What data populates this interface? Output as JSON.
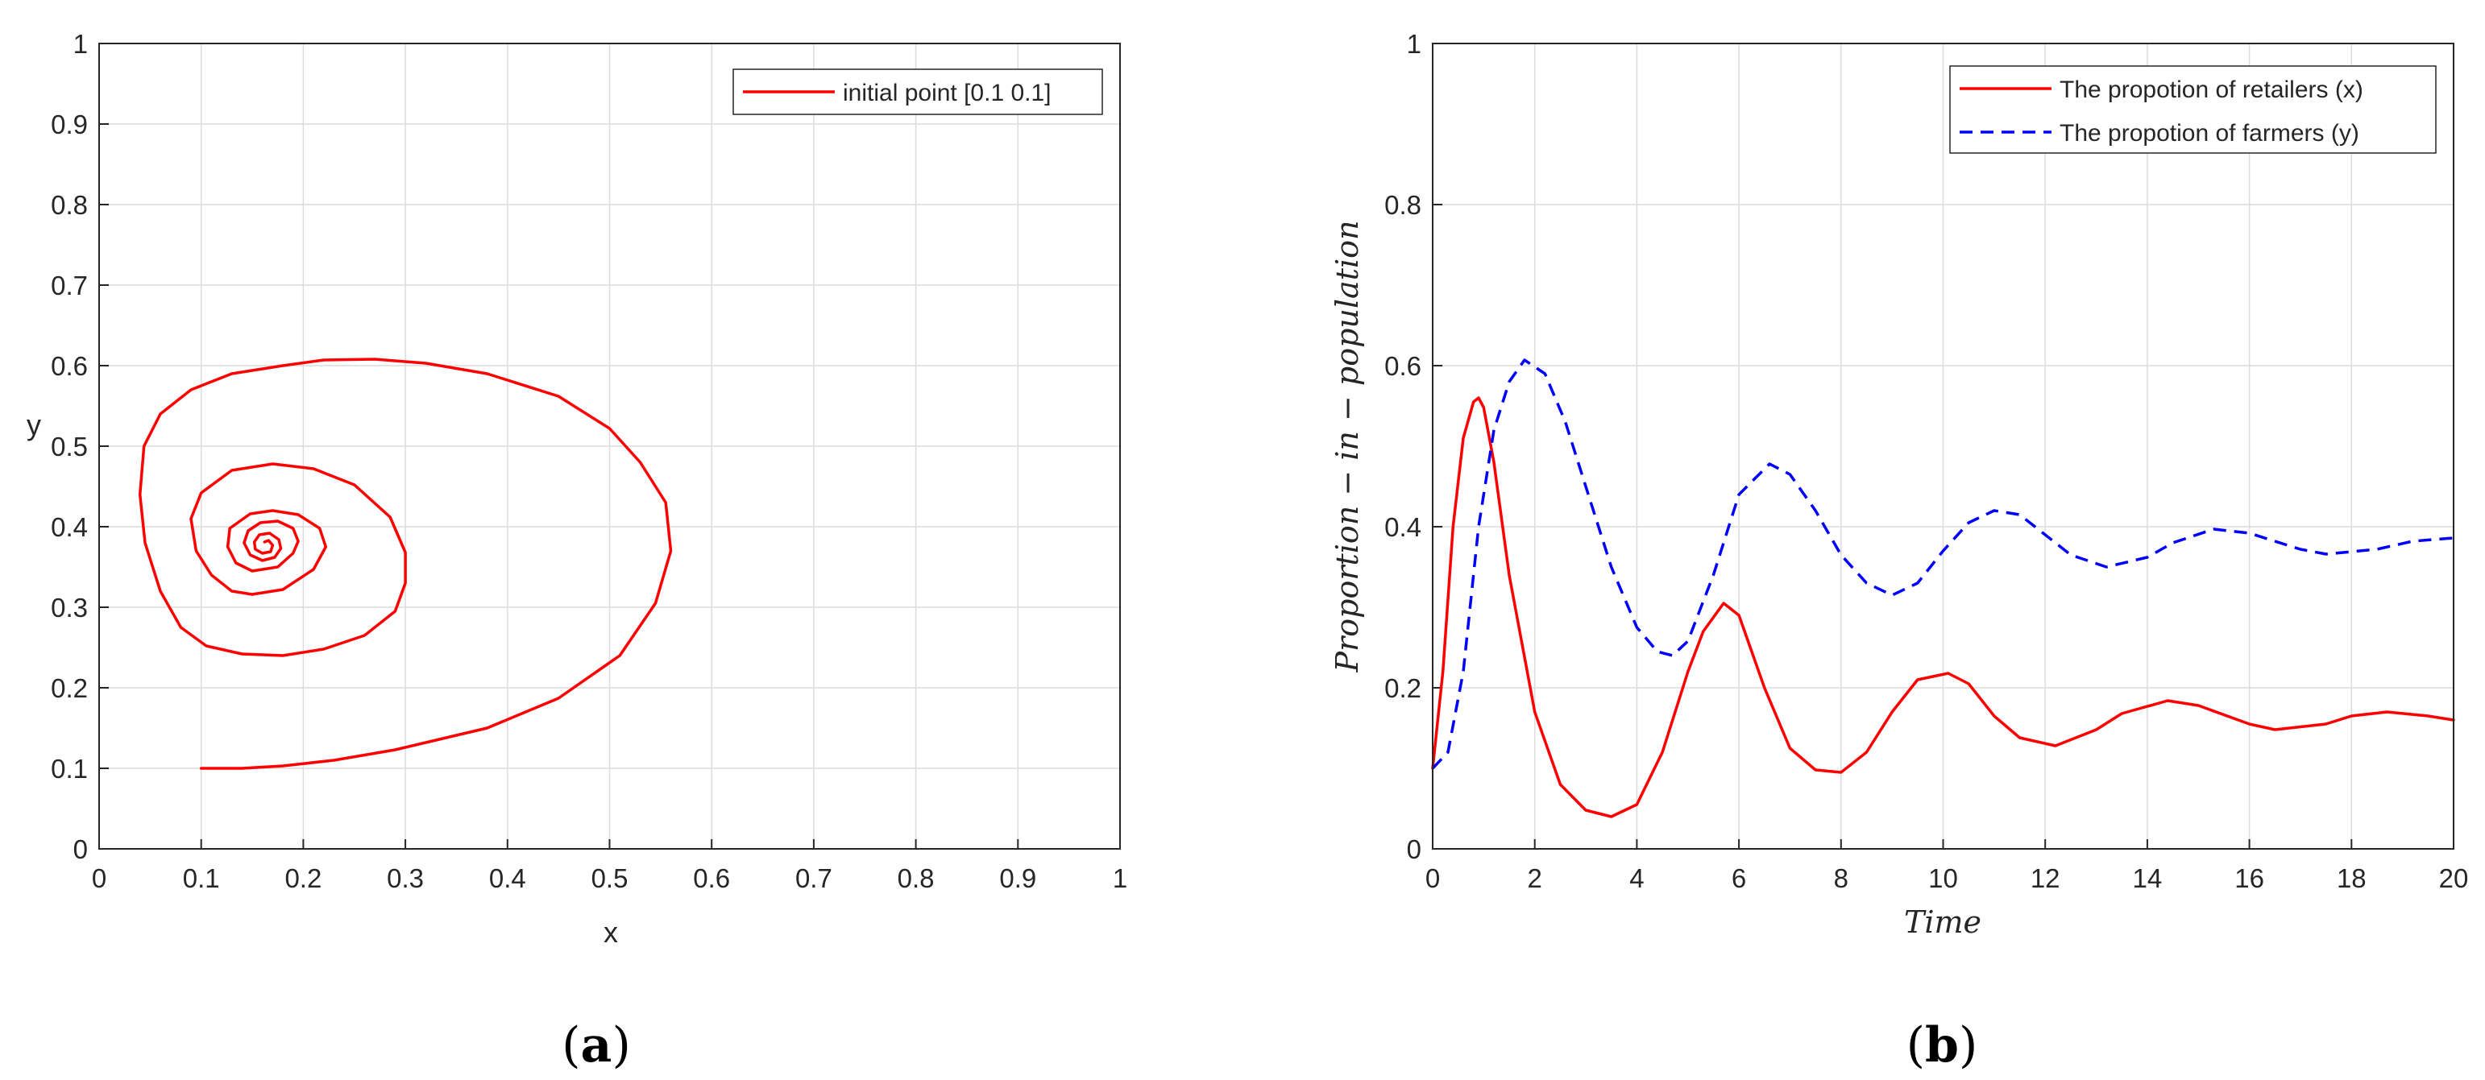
{
  "colors": {
    "retailers": "#ff0000",
    "farmers": "#0000ff",
    "axis": "#262626",
    "grid": "#dcdcdc",
    "background": "#ffffff"
  },
  "panel_labels": [
    "a",
    "b"
  ],
  "chart_data": [
    {
      "type": "line",
      "xlabel": "x",
      "ylabel": "y",
      "xlim": [
        0,
        1
      ],
      "ylim": [
        0,
        1
      ],
      "xticks": [
        "0",
        "0.1",
        "0.2",
        "0.3",
        "0.4",
        "0.5",
        "0.6",
        "0.7",
        "0.8",
        "0.9",
        "1"
      ],
      "yticks": [
        "0",
        "0.1",
        "0.2",
        "0.3",
        "0.4",
        "0.5",
        "0.6",
        "0.7",
        "0.8",
        "0.9",
        "1"
      ],
      "grid": true,
      "legend_position": "top-right",
      "series": [
        {
          "name": "initial point [0.1 0.1]",
          "color": "#ff0000",
          "style": "solid",
          "x": [
            0.1,
            0.14,
            0.18,
            0.23,
            0.29,
            0.33,
            0.38,
            0.45,
            0.51,
            0.545,
            0.56,
            0.555,
            0.53,
            0.5,
            0.45,
            0.38,
            0.32,
            0.27,
            0.22,
            0.18,
            0.13,
            0.09,
            0.06,
            0.044,
            0.04,
            0.045,
            0.06,
            0.08,
            0.105,
            0.14,
            0.18,
            0.22,
            0.26,
            0.29,
            0.3,
            0.3,
            0.285,
            0.25,
            0.21,
            0.17,
            0.13,
            0.1,
            0.09,
            0.095,
            0.11,
            0.13,
            0.15,
            0.18,
            0.21,
            0.222,
            0.216,
            0.195,
            0.17,
            0.148,
            0.128,
            0.126,
            0.134,
            0.15,
            0.175,
            0.19,
            0.195,
            0.19,
            0.175,
            0.158,
            0.146,
            0.142,
            0.148,
            0.16,
            0.172,
            0.178,
            0.176,
            0.167,
            0.157,
            0.152,
            0.153,
            0.16,
            0.168,
            0.17,
            0.166,
            0.162
          ],
          "y": [
            0.1,
            0.1,
            0.103,
            0.11,
            0.123,
            0.135,
            0.15,
            0.187,
            0.24,
            0.305,
            0.37,
            0.43,
            0.48,
            0.522,
            0.562,
            0.59,
            0.603,
            0.608,
            0.607,
            0.6,
            0.59,
            0.57,
            0.54,
            0.5,
            0.44,
            0.38,
            0.32,
            0.275,
            0.252,
            0.242,
            0.24,
            0.248,
            0.265,
            0.295,
            0.33,
            0.368,
            0.412,
            0.452,
            0.472,
            0.478,
            0.47,
            0.442,
            0.41,
            0.37,
            0.34,
            0.32,
            0.316,
            0.322,
            0.347,
            0.375,
            0.398,
            0.415,
            0.42,
            0.416,
            0.398,
            0.375,
            0.355,
            0.345,
            0.35,
            0.367,
            0.382,
            0.398,
            0.407,
            0.405,
            0.395,
            0.38,
            0.365,
            0.358,
            0.362,
            0.373,
            0.384,
            0.392,
            0.39,
            0.381,
            0.372,
            0.367,
            0.369,
            0.377,
            0.383,
            0.381
          ]
        }
      ]
    },
    {
      "type": "line",
      "xlabel": "Time",
      "ylabel": "Proportion − in − population",
      "xlim": [
        0,
        20
      ],
      "ylim": [
        0,
        1
      ],
      "xticks": [
        "0",
        "2",
        "4",
        "6",
        "8",
        "10",
        "12",
        "14",
        "16",
        "18",
        "20"
      ],
      "yticks": [
        "0",
        "0.2",
        "0.4",
        "0.6",
        "0.8",
        "1"
      ],
      "grid": true,
      "legend_position": "top-right",
      "series": [
        {
          "name": "The propotion of retailers (x)",
          "color": "#ff0000",
          "style": "solid",
          "x": [
            0,
            0.2,
            0.4,
            0.6,
            0.8,
            0.9,
            1.0,
            1.2,
            1.5,
            2.0,
            2.5,
            3.0,
            3.5,
            4.0,
            4.5,
            5.0,
            5.3,
            5.7,
            6.0,
            6.5,
            7.0,
            7.5,
            8.0,
            8.5,
            9.0,
            9.5,
            10.1,
            10.5,
            11.0,
            11.5,
            12.2,
            13.0,
            13.5,
            14.4,
            15.0,
            16.0,
            16.5,
            17.5,
            18.0,
            18.7,
            19.5,
            20
          ],
          "y": [
            0.1,
            0.22,
            0.4,
            0.51,
            0.555,
            0.56,
            0.548,
            0.48,
            0.34,
            0.17,
            0.08,
            0.048,
            0.04,
            0.055,
            0.12,
            0.22,
            0.27,
            0.305,
            0.29,
            0.2,
            0.125,
            0.098,
            0.095,
            0.12,
            0.17,
            0.21,
            0.218,
            0.205,
            0.165,
            0.138,
            0.128,
            0.148,
            0.168,
            0.184,
            0.178,
            0.155,
            0.148,
            0.155,
            0.165,
            0.17,
            0.165,
            0.16
          ]
        },
        {
          "name": "The propotion of farmers (y)",
          "color": "#0000ff",
          "style": "dashed",
          "x": [
            0,
            0.3,
            0.6,
            0.9,
            1.2,
            1.5,
            1.8,
            2.2,
            2.6,
            3.0,
            3.5,
            4.0,
            4.4,
            4.7,
            5.0,
            5.5,
            6.0,
            6.6,
            7.0,
            7.5,
            8.0,
            8.5,
            9.0,
            9.5,
            10.0,
            10.5,
            11.0,
            11.5,
            12.0,
            12.5,
            13.2,
            14.0,
            14.5,
            15.3,
            16.0,
            17.0,
            17.5,
            18.5,
            19.2,
            20
          ],
          "y": [
            0.1,
            0.12,
            0.22,
            0.4,
            0.52,
            0.58,
            0.607,
            0.59,
            0.53,
            0.45,
            0.35,
            0.275,
            0.245,
            0.24,
            0.258,
            0.34,
            0.44,
            0.478,
            0.465,
            0.42,
            0.365,
            0.33,
            0.315,
            0.33,
            0.37,
            0.405,
            0.42,
            0.415,
            0.39,
            0.365,
            0.35,
            0.362,
            0.38,
            0.397,
            0.392,
            0.372,
            0.366,
            0.372,
            0.382,
            0.386
          ]
        }
      ]
    }
  ]
}
